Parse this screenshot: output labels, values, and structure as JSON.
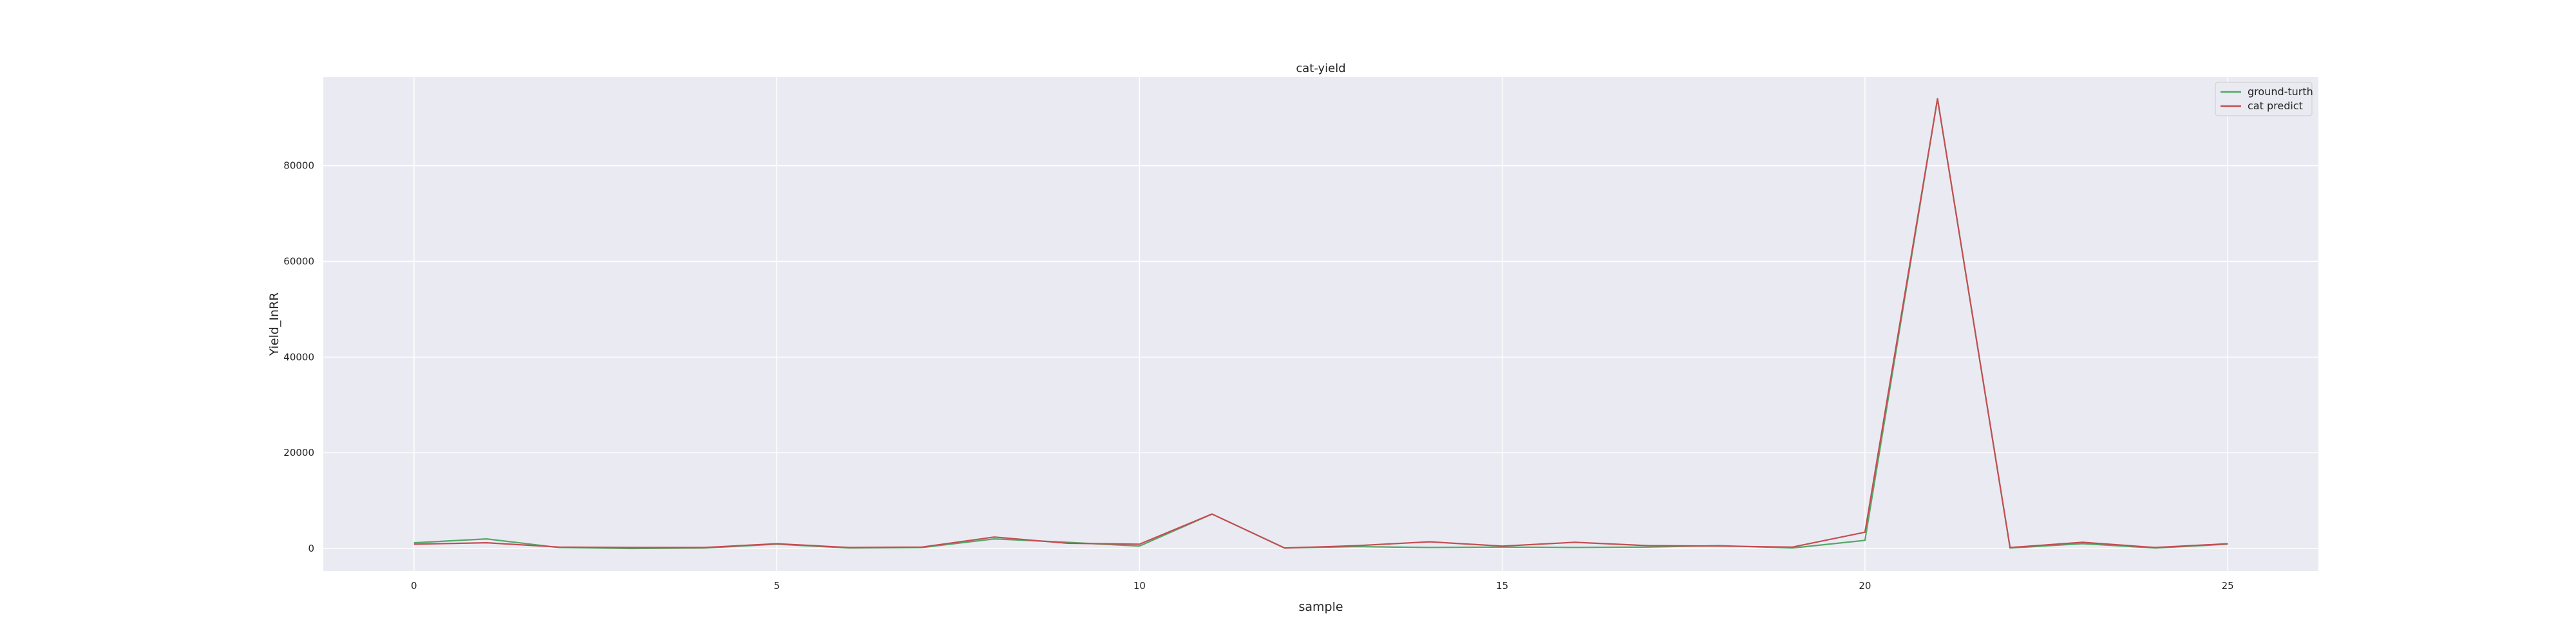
{
  "chart_data": {
    "type": "line",
    "title": "cat-yield",
    "xlabel": "sample",
    "ylabel": "Yield_InRR",
    "x": [
      0,
      1,
      2,
      3,
      4,
      5,
      6,
      7,
      8,
      9,
      10,
      11,
      12,
      13,
      14,
      15,
      16,
      17,
      18,
      19,
      20,
      21,
      22,
      23,
      24,
      25
    ],
    "xlim": [
      -1.25,
      26.25
    ],
    "ylim": [
      -4700,
      98500
    ],
    "xticks": [
      0,
      5,
      10,
      15,
      20,
      25
    ],
    "yticks": [
      0,
      20000,
      40000,
      60000,
      80000
    ],
    "grid": true,
    "legend_position": "top-right",
    "series": [
      {
        "name": "ground-turth",
        "color": "#55a868",
        "values": [
          1200,
          2000,
          200,
          0,
          100,
          900,
          100,
          200,
          2000,
          1300,
          500,
          7200,
          100,
          400,
          200,
          300,
          200,
          300,
          600,
          100,
          1700,
          94000,
          100,
          1000,
          100,
          900
        ]
      },
      {
        "name": "cat predict",
        "color": "#c44e52",
        "values": [
          900,
          1200,
          300,
          200,
          200,
          1000,
          200,
          300,
          2400,
          1100,
          900,
          7200,
          100,
          600,
          1400,
          500,
          1300,
          600,
          500,
          300,
          3400,
          94000,
          200,
          1300,
          200,
          1000
        ]
      }
    ]
  }
}
